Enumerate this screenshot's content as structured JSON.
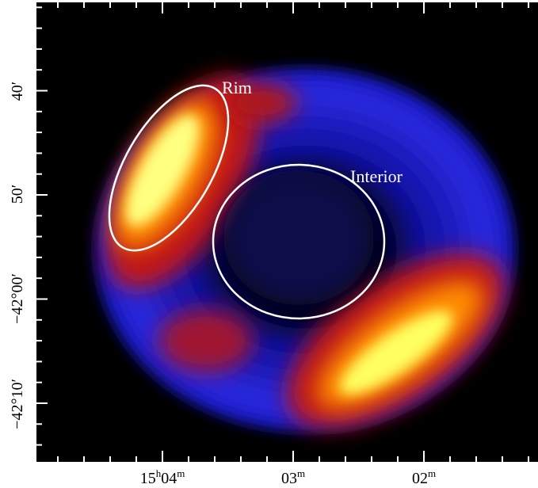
{
  "annotations": {
    "rim": "Rim",
    "interior": "Interior"
  },
  "x_axis": {
    "ticks": [
      {
        "parts": [
          "15",
          "h",
          "04",
          "m"
        ]
      },
      {
        "parts": [
          "03",
          "m"
        ]
      },
      {
        "parts": [
          "02",
          "m"
        ]
      }
    ]
  },
  "y_axis": {
    "ticks": [
      "40′",
      "50′",
      "−42°00′",
      "−42°10′"
    ]
  }
}
